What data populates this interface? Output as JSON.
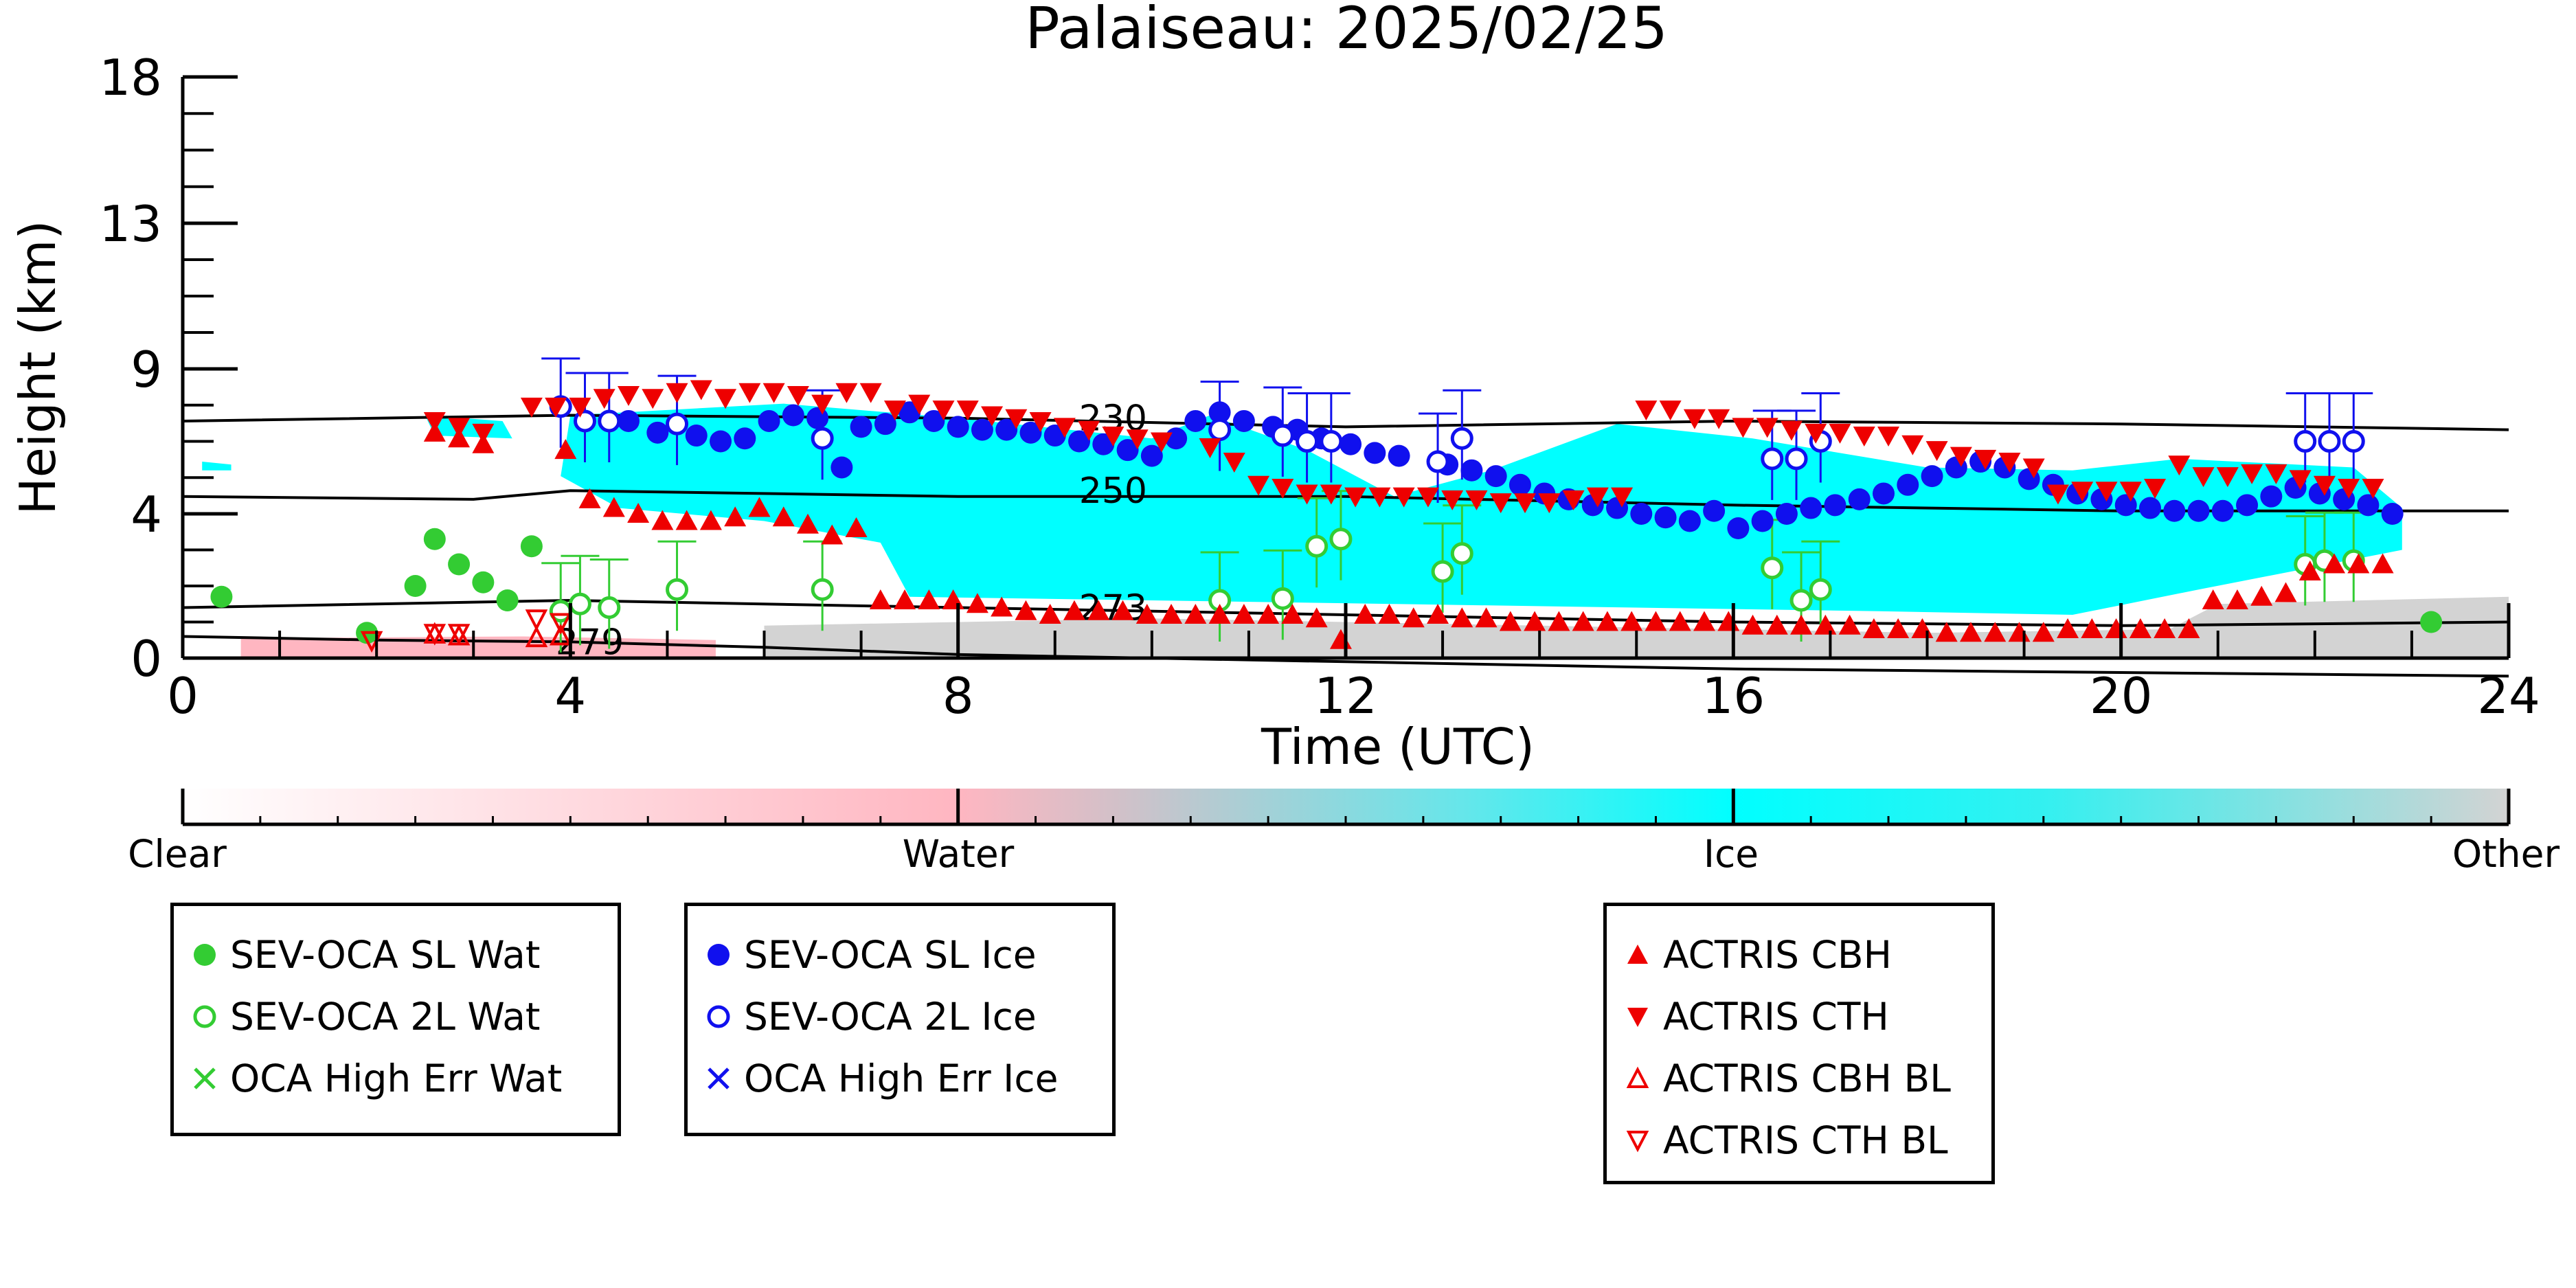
{
  "chart_data": {
    "type": "scatter",
    "title": "Palaiseau: 2025/02/25",
    "xlabel": "Time (UTC)",
    "ylabel": "Height (km)",
    "xlim": [
      0,
      24
    ],
    "x_ticks": [
      "0",
      "4",
      "8",
      "12",
      "16",
      "20",
      "24"
    ],
    "y_ticks": [
      {
        "value": 0,
        "label": "0"
      },
      {
        "value": 4,
        "label": "4"
      },
      {
        "value": 9,
        "label": "9"
      },
      {
        "value": 13,
        "label": "13"
      },
      {
        "value": 18,
        "label": "18"
      }
    ],
    "colorbar": {
      "labels": [
        "Clear",
        "Water",
        "Ice",
        "Other"
      ],
      "colors": [
        "#ffffff",
        "#ffb6c1",
        "#00ffff",
        "#d3d3d3"
      ]
    },
    "isotherms": [
      {
        "label": "230",
        "x": [
          0,
          4,
          8,
          12,
          16,
          20,
          24
        ],
        "y": [
          7.2,
          7.4,
          7.3,
          7.0,
          7.2,
          7.1,
          6.9
        ]
      },
      {
        "label": "250",
        "x": [
          0,
          3,
          4,
          8,
          12,
          16,
          20,
          24
        ],
        "y": [
          4.6,
          4.5,
          4.8,
          4.6,
          4.6,
          4.3,
          4.1,
          4.1
        ]
      },
      {
        "label": "273",
        "x": [
          0,
          4,
          8,
          12,
          16,
          20,
          24
        ],
        "y": [
          1.4,
          1.6,
          1.4,
          1.2,
          1.0,
          0.9,
          1.0
        ]
      },
      {
        "label": "279",
        "x": [
          0,
          2,
          4,
          6,
          8,
          12,
          16,
          20,
          24
        ],
        "y": [
          0.6,
          0.5,
          0.45,
          0.3,
          0.1,
          -0.1,
          -0.3,
          -0.4,
          -0.5
        ]
      }
    ],
    "series": [
      {
        "name": "SEV-OCA SL Wat",
        "color": "#33cc33",
        "marker": "circle-filled",
        "x": [
          0.4,
          1.9,
          2.4,
          2.6,
          2.85,
          3.1,
          3.35,
          3.6,
          23.2
        ],
        "y": [
          1.7,
          0.7,
          2.0,
          3.3,
          2.6,
          2.1,
          1.6,
          3.1,
          1.0
        ]
      },
      {
        "name": "SEV-OCA 2L Wat",
        "color": "#33cc33",
        "marker": "circle-open",
        "x": [
          3.9,
          4.1,
          4.4,
          5.1,
          6.6,
          10.7,
          11.35,
          11.7,
          11.95,
          13.0,
          13.2,
          16.4,
          16.7,
          16.9,
          21.9,
          22.1,
          22.4
        ],
        "y": [
          1.3,
          1.5,
          1.4,
          1.9,
          1.9,
          1.6,
          1.65,
          3.1,
          3.3,
          2.4,
          2.9,
          2.5,
          1.6,
          1.9,
          2.6,
          2.7,
          2.7
        ]
      },
      {
        "name": "OCA High Err Wat",
        "color": "#33cc33",
        "marker": "x",
        "x": [],
        "y": []
      },
      {
        "name": "SEV-OCA SL Ice",
        "color": "#1010ee",
        "marker": "circle-filled",
        "x": [
          4.6,
          4.9,
          5.3,
          5.55,
          5.8,
          6.05,
          6.3,
          6.55,
          6.8,
          7.0,
          7.25,
          7.5,
          7.75,
          8.0,
          8.25,
          8.5,
          8.75,
          9.0,
          9.25,
          9.5,
          9.75,
          10.0,
          10.25,
          10.45,
          10.7,
          10.95,
          11.25,
          11.5,
          11.75,
          12.05,
          12.3,
          12.55,
          13.05,
          13.3,
          13.55,
          13.8,
          14.05,
          14.3,
          14.55,
          14.8,
          15.05,
          15.3,
          15.55,
          15.8,
          16.05,
          16.3,
          16.55,
          16.8,
          17.05,
          17.3,
          17.55,
          17.8,
          18.05,
          18.3,
          18.55,
          18.8,
          19.05,
          19.3,
          19.55,
          19.8,
          20.05,
          20.3,
          20.55,
          20.8,
          21.05,
          21.3,
          21.55,
          21.8,
          22.05,
          22.3,
          22.55,
          22.8
        ],
        "y": [
          7.2,
          6.8,
          6.7,
          6.5,
          6.6,
          7.2,
          7.4,
          7.3,
          5.6,
          7.0,
          7.1,
          7.5,
          7.2,
          7.0,
          6.9,
          6.9,
          6.8,
          6.7,
          6.5,
          6.4,
          6.2,
          6.0,
          6.6,
          7.2,
          7.5,
          7.2,
          7.0,
          6.9,
          6.6,
          6.4,
          6.1,
          6.0,
          5.7,
          5.5,
          5.3,
          5.0,
          4.7,
          4.5,
          4.3,
          4.2,
          4.0,
          3.9,
          3.8,
          4.1,
          3.6,
          3.8,
          4.0,
          4.2,
          4.3,
          4.5,
          4.7,
          5.0,
          5.3,
          5.6,
          5.8,
          5.6,
          5.2,
          5.0,
          4.7,
          4.5,
          4.3,
          4.2,
          4.1,
          4.1,
          4.1,
          4.3,
          4.6,
          4.9,
          4.7,
          4.5,
          4.3,
          4.0
        ]
      },
      {
        "name": "SEV-OCA 2L Ice",
        "color": "#1010ee",
        "marker": "circle-open",
        "x": [
          3.9,
          4.15,
          4.4,
          5.1,
          6.6,
          10.7,
          11.35,
          11.6,
          11.85,
          12.95,
          13.2,
          16.4,
          16.65,
          16.9,
          21.9,
          22.15,
          22.4
        ],
        "y": [
          7.7,
          7.2,
          7.2,
          7.1,
          6.6,
          6.9,
          6.7,
          6.5,
          6.5,
          5.8,
          6.6,
          5.9,
          5.9,
          6.5,
          6.5,
          6.5,
          6.5
        ]
      },
      {
        "name": "OCA High Err Ice",
        "color": "#1010ee",
        "marker": "x",
        "x": [],
        "y": []
      },
      {
        "name": "ACTRIS CBH",
        "color": "#ee0000",
        "marker": "triangle-up-filled",
        "x": [
          2.6,
          2.85,
          3.1,
          3.95,
          4.2,
          4.45,
          4.7,
          4.95,
          5.2,
          5.45,
          5.7,
          5.95,
          6.2,
          6.45,
          6.7,
          6.95,
          7.2,
          7.45,
          7.7,
          7.95,
          8.2,
          8.45,
          8.7,
          8.95,
          9.2,
          9.45,
          9.7,
          9.95,
          10.2,
          10.45,
          10.7,
          10.95,
          11.2,
          11.45,
          11.7,
          11.95,
          12.2,
          12.45,
          12.7,
          12.95,
          13.2,
          13.45,
          13.7,
          13.95,
          14.2,
          14.45,
          14.7,
          14.95,
          15.2,
          15.45,
          15.7,
          15.95,
          16.2,
          16.45,
          16.7,
          16.95,
          17.2,
          17.45,
          17.7,
          17.95,
          18.2,
          18.45,
          18.7,
          18.95,
          19.2,
          19.45,
          19.7,
          19.95,
          20.2,
          20.45,
          20.7,
          20.95,
          21.2,
          21.45,
          21.7,
          21.95,
          22.2,
          22.45,
          22.7
        ],
        "y": [
          6.8,
          6.6,
          6.4,
          6.2,
          4.5,
          4.2,
          4.0,
          3.8,
          3.8,
          3.8,
          3.9,
          4.2,
          3.9,
          3.7,
          3.4,
          3.6,
          1.6,
          1.6,
          1.6,
          1.6,
          1.5,
          1.4,
          1.3,
          1.2,
          1.3,
          1.3,
          1.3,
          1.2,
          1.2,
          1.2,
          1.2,
          1.2,
          1.2,
          1.2,
          1.1,
          0.5,
          1.2,
          1.2,
          1.1,
          1.2,
          1.1,
          1.1,
          1.0,
          1.0,
          1.0,
          1.0,
          1.0,
          1.0,
          1.0,
          1.0,
          1.0,
          1.0,
          0.9,
          0.9,
          0.9,
          0.9,
          0.9,
          0.8,
          0.8,
          0.8,
          0.7,
          0.7,
          0.7,
          0.7,
          0.7,
          0.8,
          0.8,
          0.8,
          0.8,
          0.8,
          0.8,
          1.6,
          1.6,
          1.7,
          1.8,
          2.4,
          2.6,
          2.6,
          2.6
        ]
      },
      {
        "name": "ACTRIS CTH",
        "color": "#ee0000",
        "marker": "triangle-down-filled",
        "x": [
          2.6,
          2.85,
          3.1,
          3.6,
          3.85,
          4.1,
          4.35,
          4.6,
          4.85,
          5.1,
          5.35,
          5.6,
          5.85,
          6.1,
          6.35,
          6.6,
          6.85,
          7.1,
          7.35,
          7.6,
          7.85,
          8.1,
          8.35,
          8.6,
          8.85,
          9.1,
          9.35,
          9.6,
          9.85,
          10.1,
          10.6,
          10.85,
          11.1,
          11.35,
          11.6,
          11.85,
          12.1,
          12.35,
          12.6,
          12.85,
          13.1,
          13.35,
          13.6,
          13.85,
          14.1,
          14.35,
          14.6,
          14.85,
          15.1,
          15.35,
          15.6,
          15.85,
          16.1,
          16.35,
          16.6,
          16.85,
          17.1,
          17.35,
          17.6,
          17.85,
          18.1,
          18.35,
          18.6,
          18.85,
          19.1,
          19.35,
          19.6,
          19.85,
          20.1,
          20.35,
          20.6,
          20.85,
          21.1,
          21.35,
          21.6,
          21.85,
          22.1,
          22.35,
          22.6
        ],
        "y": [
          7.2,
          7.0,
          6.8,
          7.7,
          7.7,
          7.7,
          8.0,
          8.1,
          8.0,
          8.2,
          8.3,
          8.0,
          8.2,
          8.2,
          8.1,
          7.8,
          8.2,
          8.2,
          7.6,
          7.8,
          7.6,
          7.6,
          7.4,
          7.3,
          7.2,
          7.0,
          6.9,
          6.7,
          6.6,
          6.5,
          6.3,
          5.8,
          5.0,
          4.9,
          4.7,
          4.7,
          4.6,
          4.6,
          4.6,
          4.6,
          4.5,
          4.5,
          4.4,
          4.4,
          4.4,
          4.5,
          4.6,
          4.6,
          7.6,
          7.6,
          7.3,
          7.3,
          7.0,
          7.0,
          6.9,
          6.8,
          6.8,
          6.7,
          6.7,
          6.4,
          6.2,
          6.0,
          5.9,
          5.8,
          5.6,
          4.7,
          4.8,
          4.8,
          4.8,
          4.9,
          5.7,
          5.3,
          5.3,
          5.4,
          5.4,
          5.2,
          5.0,
          4.9,
          4.9
        ]
      },
      {
        "name": "ACTRIS CBH BL",
        "color": "#ee0000",
        "marker": "triangle-up-open",
        "x": [
          2.6,
          2.85,
          3.65,
          3.9
        ],
        "y": [
          0.65,
          0.6,
          0.55,
          0.6
        ]
      },
      {
        "name": "ACTRIS CTH BL",
        "color": "#ee0000",
        "marker": "triangle-down-open",
        "x": [
          1.95,
          2.6,
          2.85,
          3.65,
          3.9
        ],
        "y": [
          0.5,
          0.7,
          0.7,
          1.1,
          1.0
        ]
      }
    ],
    "legend_placement": "bottom"
  }
}
